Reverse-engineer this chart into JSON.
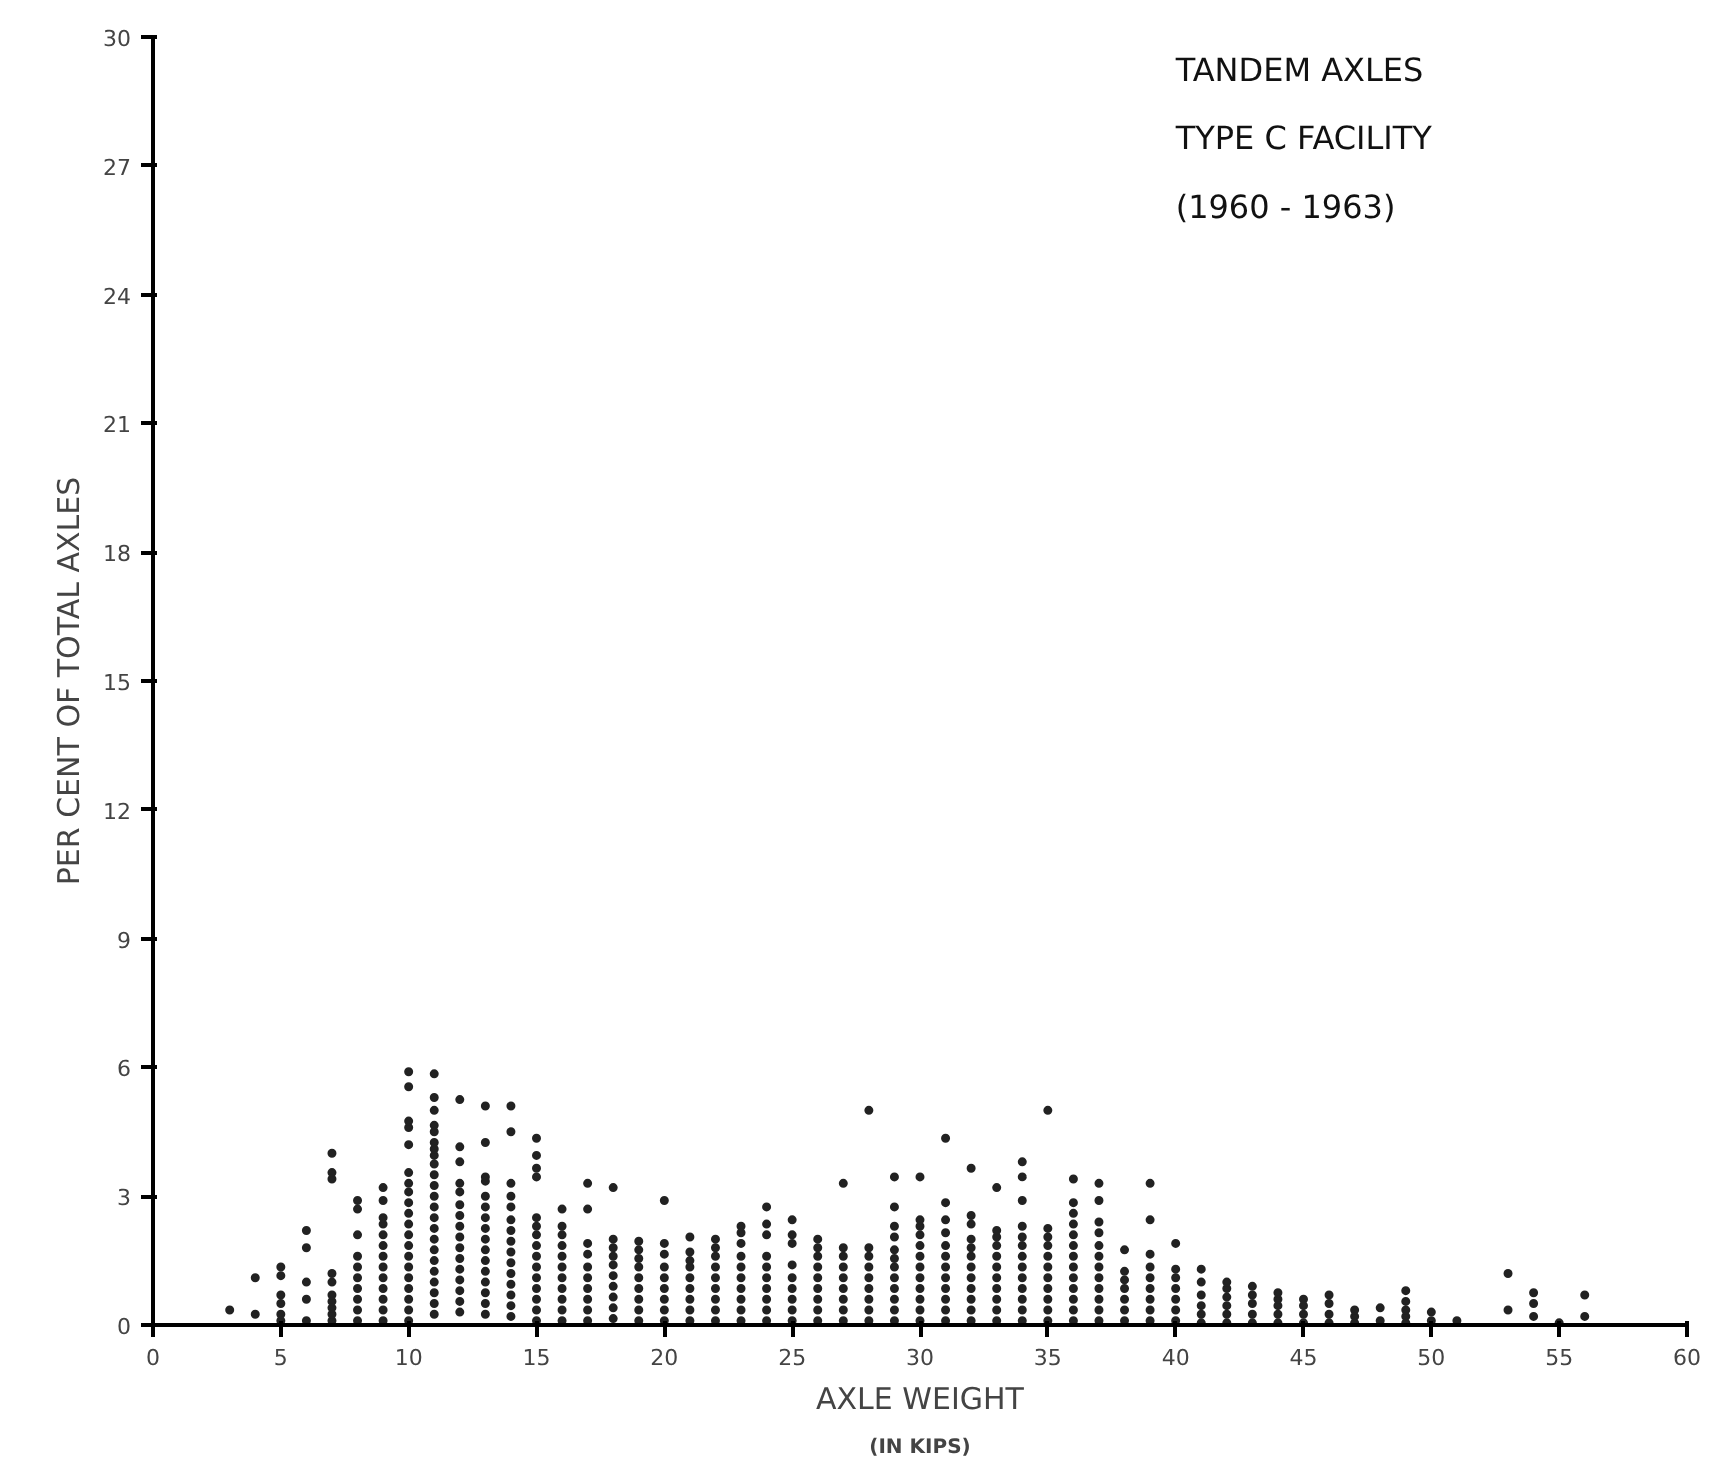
{
  "chart_data": {
    "type": "scatter",
    "xlabel": "AXLE WEIGHT",
    "ylabel": "PER CENT OF TOTAL AXLES",
    "annotations": [
      "TANDEM AXLES",
      "TYPE C FACILITY",
      "(1960 - 1963)",
      "(IN KIPS)"
    ],
    "xlim": [
      0,
      60
    ],
    "ylim": [
      0,
      30
    ],
    "xticks": [
      0,
      5,
      10,
      15,
      20,
      25,
      30,
      35,
      40,
      45,
      50,
      55,
      60
    ],
    "yticks": [
      0,
      3,
      6,
      9,
      12,
      15,
      18,
      21,
      24,
      27,
      30
    ],
    "grid": false,
    "marker": "circle",
    "series": [
      {
        "color": "#222222",
        "x": [
          3
        ],
        "values": [
          0.35
        ]
      },
      {
        "color": "#222222",
        "x": [
          4,
          4
        ],
        "values": [
          0.25,
          1.1
        ]
      },
      {
        "color": "#222222",
        "x": [
          5,
          5,
          5,
          5,
          5,
          5
        ],
        "values": [
          0.1,
          0.25,
          0.5,
          0.7,
          1.15,
          1.35
        ]
      },
      {
        "color": "#222222",
        "x": [
          6,
          6,
          6,
          6,
          6
        ],
        "values": [
          0.1,
          0.6,
          1.0,
          1.8,
          2.2
        ]
      },
      {
        "color": "#222222",
        "x": [
          7,
          7,
          7,
          7,
          7,
          7,
          7,
          7,
          7,
          7
        ],
        "values": [
          0.1,
          0.25,
          0.4,
          0.55,
          0.7,
          1.0,
          1.2,
          3.4,
          3.55,
          4.0
        ]
      },
      {
        "color": "#222222",
        "x": [
          8,
          8,
          8,
          8,
          8,
          8,
          8,
          8,
          8,
          8
        ],
        "values": [
          0.1,
          0.35,
          0.6,
          0.85,
          1.1,
          1.35,
          1.6,
          2.1,
          2.7,
          2.9
        ]
      },
      {
        "color": "#222222",
        "x": [
          9,
          9,
          9,
          9,
          9,
          9,
          9,
          9,
          9,
          9,
          9,
          9,
          9
        ],
        "values": [
          0.1,
          0.35,
          0.6,
          0.85,
          1.1,
          1.35,
          1.6,
          1.85,
          2.1,
          2.35,
          2.5,
          2.9,
          3.2
        ]
      },
      {
        "color": "#222222",
        "x": [
          10,
          10,
          10,
          10,
          10,
          10,
          10,
          10,
          10,
          10,
          10,
          10,
          10,
          10,
          10,
          10,
          10,
          10,
          10,
          10
        ],
        "values": [
          0.1,
          0.35,
          0.6,
          0.85,
          1.1,
          1.35,
          1.6,
          1.85,
          2.1,
          2.35,
          2.6,
          2.85,
          3.1,
          3.3,
          3.55,
          4.2,
          4.6,
          4.75,
          5.55,
          5.9
        ]
      },
      {
        "color": "#222222",
        "x": [
          11,
          11,
          11,
          11,
          11,
          11,
          11,
          11,
          11,
          11,
          11,
          11,
          11,
          11,
          11,
          11,
          11,
          11,
          11,
          11,
          11,
          11,
          11
        ],
        "values": [
          0.25,
          0.5,
          0.75,
          1.0,
          1.25,
          1.5,
          1.75,
          2.0,
          2.25,
          2.5,
          2.75,
          3.0,
          3.25,
          3.5,
          3.75,
          3.95,
          4.1,
          4.25,
          4.5,
          4.65,
          5.0,
          5.3,
          5.85
        ]
      },
      {
        "color": "#222222",
        "x": [
          12,
          12,
          12,
          12,
          12,
          12,
          12,
          12,
          12,
          12,
          12,
          12,
          12,
          12,
          12,
          12
        ],
        "values": [
          0.3,
          0.55,
          0.8,
          1.05,
          1.3,
          1.55,
          1.8,
          2.05,
          2.3,
          2.55,
          2.8,
          3.1,
          3.3,
          3.8,
          4.15,
          5.25
        ]
      },
      {
        "color": "#222222",
        "x": [
          13,
          13,
          13,
          13,
          13,
          13,
          13,
          13,
          13,
          13,
          13,
          13,
          13,
          13,
          13,
          13
        ],
        "values": [
          0.25,
          0.5,
          0.75,
          1.0,
          1.25,
          1.5,
          1.75,
          2.0,
          2.25,
          2.5,
          2.75,
          3.0,
          3.35,
          3.45,
          4.25,
          5.1
        ]
      },
      {
        "color": "#222222",
        "x": [
          14,
          14,
          14,
          14,
          14,
          14,
          14,
          14,
          14,
          14,
          14,
          14,
          14,
          14,
          14
        ],
        "values": [
          0.2,
          0.45,
          0.7,
          0.95,
          1.2,
          1.45,
          1.7,
          1.95,
          2.2,
          2.45,
          2.75,
          3.0,
          3.3,
          4.5,
          5.1
        ]
      },
      {
        "color": "#222222",
        "x": [
          15,
          15,
          15,
          15,
          15,
          15,
          15,
          15,
          15,
          15,
          15,
          15,
          15,
          15,
          15
        ],
        "values": [
          0.1,
          0.35,
          0.6,
          0.85,
          1.1,
          1.35,
          1.6,
          1.85,
          2.1,
          2.3,
          2.5,
          3.45,
          3.65,
          3.95,
          4.35
        ]
      },
      {
        "color": "#222222",
        "x": [
          16,
          16,
          16,
          16,
          16,
          16,
          16,
          16,
          16,
          16,
          16
        ],
        "values": [
          0.1,
          0.35,
          0.6,
          0.85,
          1.1,
          1.35,
          1.6,
          1.85,
          2.1,
          2.3,
          2.7
        ]
      },
      {
        "color": "#222222",
        "x": [
          17,
          17,
          17,
          17,
          17,
          17,
          17,
          17,
          17,
          17
        ],
        "values": [
          0.1,
          0.35,
          0.6,
          0.85,
          1.1,
          1.35,
          1.65,
          1.9,
          2.7,
          3.3
        ]
      },
      {
        "color": "#222222",
        "x": [
          18,
          18,
          18,
          18,
          18,
          18,
          18,
          18,
          18,
          18
        ],
        "values": [
          0.15,
          0.4,
          0.65,
          0.9,
          1.15,
          1.4,
          1.6,
          1.8,
          2.0,
          3.2
        ]
      },
      {
        "color": "#222222",
        "x": [
          19,
          19,
          19,
          19,
          19,
          19,
          19,
          19,
          19
        ],
        "values": [
          0.1,
          0.35,
          0.6,
          0.85,
          1.1,
          1.35,
          1.55,
          1.75,
          1.95
        ]
      },
      {
        "color": "#222222",
        "x": [
          20,
          20,
          20,
          20,
          20,
          20,
          20,
          20,
          20
        ],
        "values": [
          0.1,
          0.35,
          0.6,
          0.85,
          1.1,
          1.35,
          1.65,
          1.9,
          2.9
        ]
      },
      {
        "color": "#222222",
        "x": [
          21,
          21,
          21,
          21,
          21,
          21,
          21,
          21,
          21
        ],
        "values": [
          0.1,
          0.35,
          0.6,
          0.85,
          1.1,
          1.35,
          1.5,
          1.7,
          2.05
        ]
      },
      {
        "color": "#222222",
        "x": [
          22,
          22,
          22,
          22,
          22,
          22,
          22,
          22,
          22
        ],
        "values": [
          0.1,
          0.35,
          0.6,
          0.85,
          1.1,
          1.35,
          1.6,
          1.8,
          2.0
        ]
      },
      {
        "color": "#222222",
        "x": [
          23,
          23,
          23,
          23,
          23,
          23,
          23,
          23,
          23,
          23
        ],
        "values": [
          0.1,
          0.35,
          0.6,
          0.85,
          1.1,
          1.35,
          1.6,
          1.9,
          2.15,
          2.3
        ]
      },
      {
        "color": "#222222",
        "x": [
          24,
          24,
          24,
          24,
          24,
          24,
          24,
          24,
          24,
          24
        ],
        "values": [
          0.1,
          0.35,
          0.6,
          0.85,
          1.1,
          1.35,
          1.6,
          2.1,
          2.35,
          2.75
        ]
      },
      {
        "color": "#222222",
        "x": [
          25,
          25,
          25,
          25,
          25,
          25,
          25,
          25,
          25
        ],
        "values": [
          0.1,
          0.35,
          0.6,
          0.85,
          1.1,
          1.4,
          1.9,
          2.1,
          2.45
        ]
      },
      {
        "color": "#222222",
        "x": [
          26,
          26,
          26,
          26,
          26,
          26,
          26,
          26,
          26
        ],
        "values": [
          0.1,
          0.35,
          0.6,
          0.85,
          1.1,
          1.35,
          1.6,
          1.8,
          2.0
        ]
      },
      {
        "color": "#222222",
        "x": [
          27,
          27,
          27,
          27,
          27,
          27,
          27,
          27,
          27
        ],
        "values": [
          0.1,
          0.35,
          0.6,
          0.85,
          1.1,
          1.35,
          1.6,
          1.8,
          3.3
        ]
      },
      {
        "color": "#222222",
        "x": [
          28,
          28,
          28,
          28,
          28,
          28,
          28,
          28,
          28
        ],
        "values": [
          0.1,
          0.35,
          0.6,
          0.85,
          1.1,
          1.35,
          1.6,
          1.8,
          5.0
        ]
      },
      {
        "color": "#222222",
        "x": [
          29,
          29,
          29,
          29,
          29,
          29,
          29,
          29,
          29,
          29,
          29,
          29
        ],
        "values": [
          0.1,
          0.35,
          0.6,
          0.85,
          1.1,
          1.35,
          1.55,
          1.75,
          2.05,
          2.3,
          2.75,
          3.45
        ]
      },
      {
        "color": "#222222",
        "x": [
          30,
          30,
          30,
          30,
          30,
          30,
          30,
          30,
          30,
          30,
          30,
          30
        ],
        "values": [
          0.1,
          0.35,
          0.6,
          0.85,
          1.1,
          1.35,
          1.6,
          1.85,
          2.1,
          2.3,
          2.45,
          3.45
        ]
      },
      {
        "color": "#222222",
        "x": [
          31,
          31,
          31,
          31,
          31,
          31,
          31,
          31,
          31,
          31,
          31,
          31
        ],
        "values": [
          0.1,
          0.35,
          0.6,
          0.85,
          1.1,
          1.35,
          1.6,
          1.85,
          2.15,
          2.45,
          2.85,
          4.35
        ]
      },
      {
        "color": "#222222",
        "x": [
          32,
          32,
          32,
          32,
          32,
          32,
          32,
          32,
          32,
          32,
          32,
          32
        ],
        "values": [
          0.1,
          0.35,
          0.6,
          0.85,
          1.1,
          1.35,
          1.6,
          1.8,
          2.0,
          2.35,
          2.55,
          3.65
        ]
      },
      {
        "color": "#222222",
        "x": [
          33,
          33,
          33,
          33,
          33,
          33,
          33,
          33,
          33,
          33,
          33
        ],
        "values": [
          0.1,
          0.35,
          0.6,
          0.85,
          1.1,
          1.35,
          1.6,
          1.85,
          2.05,
          2.2,
          3.2
        ]
      },
      {
        "color": "#222222",
        "x": [
          34,
          34,
          34,
          34,
          34,
          34,
          34,
          34,
          34,
          34,
          34,
          34,
          34
        ],
        "values": [
          0.1,
          0.35,
          0.6,
          0.85,
          1.1,
          1.35,
          1.6,
          1.85,
          2.05,
          2.3,
          2.9,
          3.45,
          3.8
        ]
      },
      {
        "color": "#222222",
        "x": [
          35,
          35,
          35,
          35,
          35,
          35,
          35,
          35,
          35,
          35,
          35
        ],
        "values": [
          0.1,
          0.35,
          0.6,
          0.85,
          1.1,
          1.35,
          1.6,
          1.85,
          2.05,
          2.25,
          5.0
        ]
      },
      {
        "color": "#222222",
        "x": [
          36,
          36,
          36,
          36,
          36,
          36,
          36,
          36,
          36,
          36,
          36,
          36,
          36
        ],
        "values": [
          0.1,
          0.35,
          0.6,
          0.85,
          1.1,
          1.35,
          1.6,
          1.85,
          2.1,
          2.35,
          2.6,
          2.85,
          3.4
        ]
      },
      {
        "color": "#222222",
        "x": [
          37,
          37,
          37,
          37,
          37,
          37,
          37,
          37,
          37,
          37,
          37,
          37
        ],
        "values": [
          0.1,
          0.35,
          0.6,
          0.85,
          1.1,
          1.35,
          1.6,
          1.85,
          2.15,
          2.4,
          2.9,
          3.3
        ]
      },
      {
        "color": "#222222",
        "x": [
          38,
          38,
          38,
          38,
          38,
          38,
          38
        ],
        "values": [
          0.1,
          0.35,
          0.6,
          0.85,
          1.05,
          1.25,
          1.75
        ]
      },
      {
        "color": "#222222",
        "x": [
          39,
          39,
          39,
          39,
          39,
          39,
          39,
          39,
          39
        ],
        "values": [
          0.1,
          0.35,
          0.6,
          0.85,
          1.1,
          1.35,
          1.65,
          2.45,
          3.3
        ]
      },
      {
        "color": "#222222",
        "x": [
          40,
          40,
          40,
          40,
          40,
          40,
          40
        ],
        "values": [
          0.1,
          0.35,
          0.6,
          0.85,
          1.1,
          1.3,
          1.9
        ]
      },
      {
        "color": "#222222",
        "x": [
          41,
          41,
          41,
          41,
          41,
          41
        ],
        "values": [
          0.05,
          0.25,
          0.45,
          0.7,
          1.0,
          1.3
        ]
      },
      {
        "color": "#222222",
        "x": [
          42,
          42,
          42,
          42,
          42,
          42
        ],
        "values": [
          0.05,
          0.25,
          0.45,
          0.65,
          0.85,
          1.0
        ]
      },
      {
        "color": "#222222",
        "x": [
          43,
          43,
          43,
          43,
          43
        ],
        "values": [
          0.05,
          0.25,
          0.5,
          0.7,
          0.9
        ]
      },
      {
        "color": "#222222",
        "x": [
          44,
          44,
          44,
          44,
          44
        ],
        "values": [
          0.05,
          0.25,
          0.45,
          0.6,
          0.75
        ]
      },
      {
        "color": "#222222",
        "x": [
          45,
          45,
          45,
          45
        ],
        "values": [
          0.05,
          0.25,
          0.45,
          0.6
        ]
      },
      {
        "color": "#222222",
        "x": [
          46,
          46,
          46,
          46
        ],
        "values": [
          0.05,
          0.25,
          0.5,
          0.7
        ]
      },
      {
        "color": "#222222",
        "x": [
          47,
          47,
          47
        ],
        "values": [
          0.05,
          0.2,
          0.35
        ]
      },
      {
        "color": "#222222",
        "x": [
          48,
          48
        ],
        "values": [
          0.1,
          0.4
        ]
      },
      {
        "color": "#222222",
        "x": [
          49,
          49,
          49,
          49,
          49
        ],
        "values": [
          0.05,
          0.2,
          0.35,
          0.55,
          0.8
        ]
      },
      {
        "color": "#222222",
        "x": [
          50,
          50
        ],
        "values": [
          0.1,
          0.3
        ]
      },
      {
        "color": "#222222",
        "x": [
          51
        ],
        "values": [
          0.1
        ]
      },
      {
        "color": "#222222",
        "x": [
          53,
          53
        ],
        "values": [
          0.35,
          1.2
        ]
      },
      {
        "color": "#222222",
        "x": [
          54,
          54,
          54
        ],
        "values": [
          0.2,
          0.5,
          0.75
        ]
      },
      {
        "color": "#222222",
        "x": [
          55
        ],
        "values": [
          0.05
        ]
      },
      {
        "color": "#222222",
        "x": [
          56,
          56
        ],
        "values": [
          0.2,
          0.7
        ]
      }
    ]
  }
}
